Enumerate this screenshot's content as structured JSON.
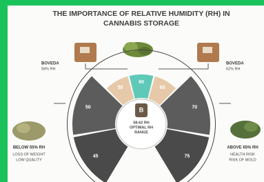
{
  "header": {
    "title_lines": [
      "THE IMPORTANCE OF RELATIVE HUMIDITY (RH) IN",
      "CANNABIS STORAGE"
    ]
  },
  "left_pack": {
    "brand": "BOVEDA",
    "rh": "58% RH"
  },
  "right_pack": {
    "brand": "BOVEDA",
    "rh": "62% RH"
  },
  "jar_logo": "B",
  "dial": {
    "segments": [
      "45",
      "50",
      "55",
      "60",
      "65",
      "70",
      "75"
    ],
    "center_lines": [
      "58-62 RH",
      "OPTIMAL RH",
      "RANGE"
    ]
  },
  "below": {
    "title": "BELOW 55% RH",
    "lines": [
      "LOSS OF WEIGHT",
      "LOW QUALITY"
    ]
  },
  "above": {
    "title": "ABOVE 65% RH",
    "lines": [
      "HEALTH RISK",
      "RISK OF MOLD"
    ]
  }
}
